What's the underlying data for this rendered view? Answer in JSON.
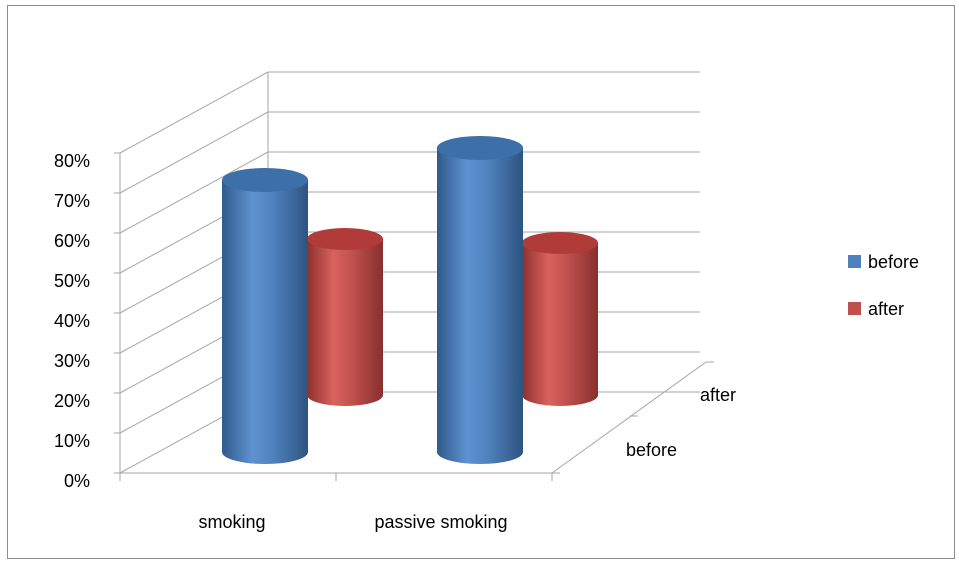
{
  "chart_data": {
    "type": "bar",
    "subtype": "3d-cylinder",
    "title": "",
    "xlabel": "",
    "ylabel": "",
    "categories": [
      "smoking",
      "passive smoking"
    ],
    "depth_categories": [
      "before",
      "after"
    ],
    "series": [
      {
        "name": "before",
        "values": [
          0.73,
          0.81
        ],
        "color": "#4f81bd"
      },
      {
        "name": "after",
        "values": [
          0.56,
          0.55
        ],
        "color": "#c0504d"
      }
    ],
    "ylim": [
      0,
      0.8
    ],
    "y_ticks": [
      "0%",
      "10%",
      "20%",
      "30%",
      "40%",
      "50%",
      "60%",
      "70%",
      "80%"
    ],
    "grid": true,
    "legend_position": "right"
  }
}
